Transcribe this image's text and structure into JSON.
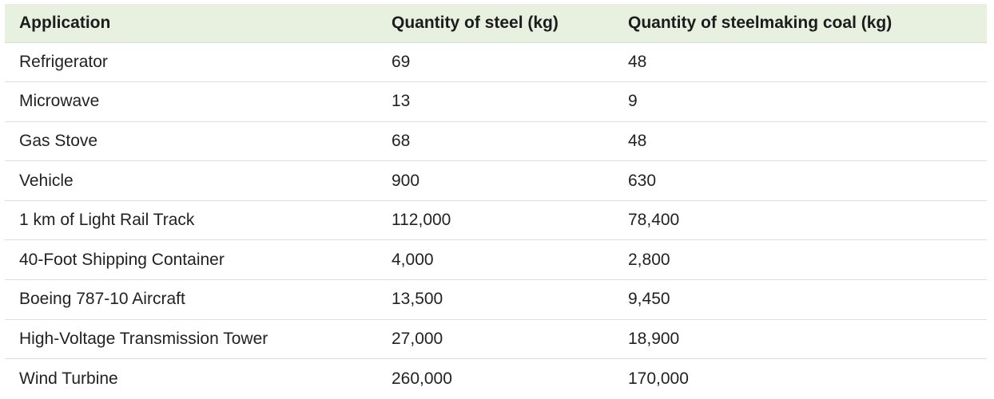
{
  "table": {
    "headers": [
      "Application",
      "Quantity of steel (kg)",
      "Quantity of steelmaking coal (kg)"
    ],
    "rows": [
      [
        "Refrigerator",
        "69",
        "48"
      ],
      [
        "Microwave",
        "13",
        "9"
      ],
      [
        "Gas Stove",
        "68",
        "48"
      ],
      [
        "Vehicle",
        "900",
        "630"
      ],
      [
        "1 km of Light Rail Track",
        "112,000",
        "78,400"
      ],
      [
        "40-Foot Shipping Container",
        "4,000",
        "2,800"
      ],
      [
        "Boeing 787-10 Aircraft",
        "13,500",
        "9,450"
      ],
      [
        "High-Voltage Transmission Tower",
        "27,000",
        "18,900"
      ],
      [
        "Wind Turbine",
        "260,000",
        "170,000"
      ]
    ]
  },
  "colors": {
    "header_background": "#e8f1df",
    "row_divider": "#dedede"
  }
}
